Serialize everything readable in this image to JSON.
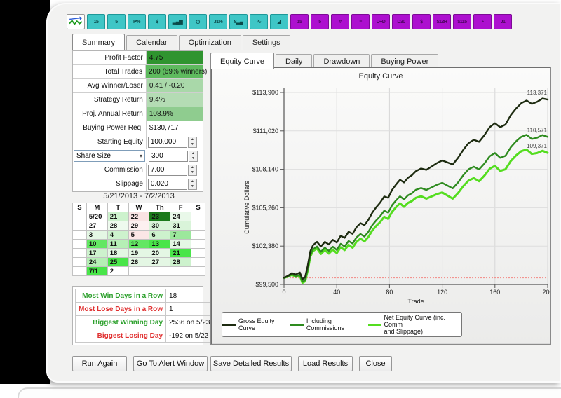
{
  "toolbar": {
    "icons": [
      {
        "name": "equity-logo-icon",
        "type": "logo",
        "glyph": ""
      },
      {
        "name": "backtest-15-icon",
        "color": "teal",
        "glyph": "15"
      },
      {
        "name": "backtest-5-icon",
        "color": "teal",
        "glyph": "5"
      },
      {
        "name": "percent-results-icon",
        "color": "teal",
        "glyph": "P%"
      },
      {
        "name": "dollar-results-icon",
        "color": "teal",
        "glyph": "$"
      },
      {
        "name": "bar-chart-icon",
        "color": "teal",
        "glyph": "▂▄▆"
      },
      {
        "name": "clock-icon",
        "color": "teal",
        "glyph": "◷"
      },
      {
        "name": "j1-percent-icon",
        "color": "teal",
        "glyph": "J1%"
      },
      {
        "name": "bar-8-icon",
        "color": "teal",
        "glyph": "8▂▄"
      },
      {
        "name": "wave-chart-icon",
        "color": "teal",
        "glyph": "l∿"
      },
      {
        "name": "slope-chart-icon",
        "color": "teal",
        "glyph": "◢"
      },
      {
        "name": "grid-15-icon",
        "color": "purple",
        "glyph": "15"
      },
      {
        "name": "grid-5-icon",
        "color": "purple",
        "glyph": "5"
      },
      {
        "name": "number-icon",
        "color": "purple",
        "glyph": "#"
      },
      {
        "name": "equals-icon",
        "color": "purple",
        "glyph": "≡"
      },
      {
        "name": "d-plus-d-icon",
        "color": "purple",
        "glyph": "D+D"
      },
      {
        "name": "d30-icon",
        "color": "purple",
        "glyph": "D30"
      },
      {
        "name": "dollar-purple-icon",
        "color": "purple",
        "glyph": "$"
      },
      {
        "name": "dollar-12h-icon",
        "color": "purple",
        "glyph": "$12H"
      },
      {
        "name": "dollar-115-icon",
        "color": "purple",
        "glyph": "$115"
      },
      {
        "name": "clock-purple-icon",
        "color": "purple",
        "glyph": "◔"
      },
      {
        "name": "j1-purple-icon",
        "color": "purple",
        "glyph": "J1"
      }
    ]
  },
  "main_tabs": [
    {
      "label": "Summary",
      "active": true
    },
    {
      "label": "Calendar",
      "active": false
    },
    {
      "label": "Optimization",
      "active": false
    },
    {
      "label": "Settings",
      "active": false
    }
  ],
  "stats_rows": [
    {
      "type": "display",
      "label": "Profit Factor",
      "value": "4.75",
      "bg": "#2f942f"
    },
    {
      "type": "display",
      "label": "Total Trades",
      "value": "200 (69% winners)",
      "bg": "#5eba5e"
    },
    {
      "type": "display",
      "label": "Avg Winner/Loser",
      "value": "0.41 / -0.20",
      "bg": "#a9d8a9"
    },
    {
      "type": "display",
      "label": "Strategy Return",
      "value": "9.4%",
      "bg": "#b4dcb4"
    },
    {
      "type": "display",
      "label": "Proj. Annual Return",
      "value": "108.9%",
      "bg": "#8fcc8f"
    },
    {
      "type": "display",
      "label": "Buying Power Req.",
      "value": "$130,717",
      "bg": "#ffffff"
    },
    {
      "type": "input",
      "label": "Starting Equity",
      "value": "100,000"
    },
    {
      "type": "dropdown",
      "label": "Share Size",
      "value": "300"
    },
    {
      "type": "input",
      "label": "Commission",
      "value": "7.00"
    },
    {
      "type": "input",
      "label": "Slippage",
      "value": "0.020"
    }
  ],
  "date_range": "5/21/2013 - 7/2/2013",
  "calendar": {
    "headers": [
      "S",
      "M",
      "T",
      "W",
      "Th",
      "F",
      "S"
    ],
    "weeks": [
      [
        {
          "t": ""
        },
        {
          "t": "5/20",
          "bg": "#ffffff"
        },
        {
          "t": "21",
          "bg": "#cdf2cd"
        },
        {
          "t": "22",
          "bg": "#f9e3e3"
        },
        {
          "t": "23",
          "bg": "#1c7a1c"
        },
        {
          "t": "24",
          "bg": "#e9f8e9"
        },
        {
          "t": ""
        }
      ],
      [
        {
          "t": ""
        },
        {
          "t": "27",
          "bg": "#ffffff"
        },
        {
          "t": "28",
          "bg": "#eefaee"
        },
        {
          "t": "29",
          "bg": "#fdf0f0"
        },
        {
          "t": "30",
          "bg": "#d9f4d9"
        },
        {
          "t": "31",
          "bg": "#d9f4d9"
        },
        {
          "t": ""
        }
      ],
      [
        {
          "t": ""
        },
        {
          "t": "3",
          "bg": "#e4f7e4"
        },
        {
          "t": "4",
          "bg": "#cdf2cd"
        },
        {
          "t": "5",
          "bg": "#fbe6e6"
        },
        {
          "t": "6",
          "bg": "#cdf2cd"
        },
        {
          "t": "7",
          "bg": "#9ce89c"
        },
        {
          "t": ""
        }
      ],
      [
        {
          "t": ""
        },
        {
          "t": "10",
          "bg": "#63e763"
        },
        {
          "t": "11",
          "bg": "#b5efb5"
        },
        {
          "t": "12",
          "bg": "#63e763"
        },
        {
          "t": "13",
          "bg": "#49e549"
        },
        {
          "t": "14",
          "bg": "#e4f7e4"
        },
        {
          "t": ""
        }
      ],
      [
        {
          "t": ""
        },
        {
          "t": "17",
          "bg": "#cdf2cd"
        },
        {
          "t": "18",
          "bg": "#e4f7e4"
        },
        {
          "t": "19",
          "bg": "#e4f7e4"
        },
        {
          "t": "20",
          "bg": "#e4f7e4"
        },
        {
          "t": "21",
          "bg": "#49e549"
        },
        {
          "t": ""
        }
      ],
      [
        {
          "t": ""
        },
        {
          "t": "24",
          "bg": "#b5efb5"
        },
        {
          "t": "25",
          "bg": "#49e549"
        },
        {
          "t": "26",
          "bg": "#e4f7e4"
        },
        {
          "t": "27",
          "bg": "#e4f7e4"
        },
        {
          "t": "28",
          "bg": "#cdf2cd"
        },
        {
          "t": ""
        }
      ],
      [
        {
          "t": ""
        },
        {
          "t": "7/1",
          "bg": "#49e549"
        },
        {
          "t": "2",
          "bg": "#ffffff"
        },
        {
          "t": ""
        },
        {
          "t": ""
        },
        {
          "t": ""
        },
        {
          "t": ""
        }
      ]
    ]
  },
  "streak_rows": [
    {
      "label": "Most Win Days in a Row",
      "value": "18",
      "color": "#2ca02c"
    },
    {
      "label": "Most Lose Days in a Row",
      "value": "1",
      "color": "#e03030"
    },
    {
      "label": "Biggest Winning Day",
      "value": "2536 on 5/23",
      "color": "#2ca02c"
    },
    {
      "label": "Biggest Losing Day",
      "value": "-192 on 5/22",
      "color": "#e03030"
    }
  ],
  "chart_tabs": [
    {
      "label": "Equity Curve",
      "active": true
    },
    {
      "label": "Daily",
      "active": false
    },
    {
      "label": "Drawdown",
      "active": false
    },
    {
      "label": "Buying Power",
      "active": false
    }
  ],
  "chart_data": {
    "type": "line",
    "title": "Equity Curve",
    "xlabel": "Trade",
    "ylabel": "Cumulative Dollars",
    "xlim": [
      0,
      200
    ],
    "ylim": [
      99500,
      113900
    ],
    "x_ticks": [
      0,
      40,
      80,
      120,
      160,
      200
    ],
    "y_ticks": [
      {
        "value": 99500,
        "label": "$99,500"
      },
      {
        "value": 102380,
        "label": "$102,380"
      },
      {
        "value": 105260,
        "label": "$105,260"
      },
      {
        "value": 108140,
        "label": "$108,140"
      },
      {
        "value": 111020,
        "label": "$111,020"
      },
      {
        "value": 113900,
        "label": "$113,900"
      }
    ],
    "baseline": {
      "value": 100000,
      "color": "#f2938f"
    },
    "grid": true,
    "legend_position": "bottom",
    "x": [
      0,
      3,
      6,
      9,
      12,
      14,
      16,
      18,
      20,
      22,
      25,
      28,
      31,
      34,
      37,
      40,
      43,
      46,
      49,
      52,
      55,
      58,
      61,
      64,
      67,
      70,
      73,
      76,
      79,
      82,
      85,
      88,
      91,
      94,
      97,
      100,
      104,
      108,
      112,
      116,
      120,
      124,
      128,
      132,
      136,
      140,
      144,
      148,
      152,
      156,
      160,
      164,
      168,
      172,
      176,
      180,
      184,
      188,
      192,
      196,
      200
    ],
    "series": [
      {
        "name": "Gross Equity Curve",
        "color": "#1d2b10",
        "stroke_width": 2.4,
        "end_label": "113,371",
        "values": [
          100000,
          100150,
          100350,
          100250,
          100400,
          99900,
          100050,
          100900,
          102000,
          102450,
          102700,
          102350,
          102700,
          102500,
          102850,
          102650,
          103150,
          103000,
          103450,
          103300,
          103800,
          104100,
          103950,
          104350,
          104900,
          105300,
          105650,
          106100,
          106000,
          106600,
          107000,
          107350,
          107150,
          107500,
          107700,
          108000,
          108200,
          108100,
          108350,
          108600,
          108800,
          108650,
          108500,
          109000,
          109600,
          110100,
          110350,
          110200,
          110700,
          111300,
          111600,
          111300,
          111500,
          112200,
          112700,
          113100,
          113300,
          113050,
          113200,
          113450,
          113371
        ]
      },
      {
        "name": "Including Commissions",
        "color": "#2e8b1f",
        "stroke_width": 2.4,
        "end_label": "110,571",
        "values": [
          100000,
          100108,
          100266,
          100124,
          100232,
          99704,
          99826,
          100648,
          101720,
          102142,
          102350,
          101958,
          102266,
          102024,
          102332,
          102090,
          102548,
          102356,
          102764,
          102572,
          103030,
          103288,
          103096,
          103454,
          103962,
          104320,
          104628,
          105036,
          104894,
          105452,
          105810,
          106118,
          105876,
          106184,
          106342,
          106600,
          106744,
          106588,
          106782,
          106976,
          107120,
          106914,
          106708,
          107152,
          107696,
          108140,
          108334,
          108128,
          108572,
          109116,
          109360,
          109004,
          109148,
          109792,
          110236,
          110580,
          110724,
          110418,
          110512,
          110706,
          110571
        ]
      },
      {
        "name": "Net Equity Curve (inc. Comm\nand Slippage)",
        "color": "#54dd1f",
        "stroke_width": 3,
        "end_label": "109,371",
        "values": [
          100000,
          100090,
          100230,
          100070,
          100160,
          99620,
          99730,
          100540,
          101600,
          102010,
          102200,
          101790,
          102080,
          101820,
          102110,
          101850,
          102290,
          102080,
          102470,
          102260,
          102700,
          102940,
          102730,
          103070,
          103560,
          103900,
          104190,
          104580,
          104420,
          104960,
          105300,
          105590,
          105330,
          105620,
          105760,
          106000,
          106120,
          105940,
          106110,
          106280,
          106400,
          106170,
          105940,
          106360,
          106880,
          107300,
          107470,
          107240,
          107660,
          108180,
          108400,
          108020,
          108140,
          108760,
          109180,
          109500,
          109620,
          109290,
          109360,
          109530,
          109371
        ]
      }
    ]
  },
  "footer_buttons": [
    "Run Again",
    "Go To Alert Window",
    "Save Detailed Results",
    "Load Results",
    "Close"
  ]
}
